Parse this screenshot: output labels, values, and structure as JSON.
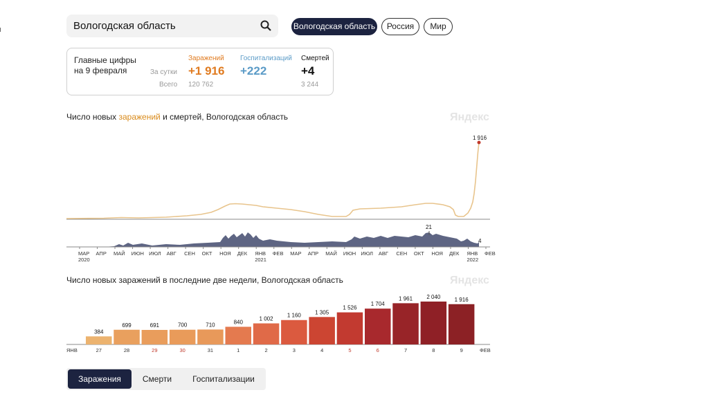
{
  "search": {
    "value": "Вологодская область"
  },
  "regions": [
    "Вологодская область",
    "Россия",
    "Мир"
  ],
  "stats": {
    "heading_line1": "Главные цифры",
    "heading_line2": "на 9 февраля",
    "per_day_label": "За сутки",
    "total_label": "Всего",
    "infections": {
      "label": "Заражений",
      "day": "+1 916",
      "total": "120 762",
      "color": "#e07b20"
    },
    "hospital": {
      "label": "Госпитализаций",
      "day": "+222",
      "total": "",
      "color": "#5b9bc7"
    },
    "deaths": {
      "label": "Смертей",
      "day": "+4",
      "total": "3 244",
      "color": "#111111"
    }
  },
  "chart1": {
    "title_a": "Число новых ",
    "title_hl": "заражений",
    "title_b": " и смертей, Вологодская область",
    "watermark": "Яндекс",
    "peak_label": "1 916",
    "deaths_peak_label": "21",
    "deaths_last_label": "4",
    "months": [
      "МАР",
      "АПР",
      "МАЙ",
      "ИЮН",
      "ИЮЛ",
      "АВГ",
      "СЕН",
      "ОКТ",
      "НОЯ",
      "ДЕК",
      "ЯНВ",
      "ФЕВ",
      "МАР",
      "АПР",
      "МАЙ",
      "ИЮН",
      "ИЮЛ",
      "АВГ",
      "СЕН",
      "ОКТ",
      "НОЯ",
      "ДЕК",
      "ЯНВ",
      "ФЕВ"
    ],
    "years": [
      "2020",
      "2021",
      "2022"
    ]
  },
  "chart_data": {
    "type": "bar",
    "title": "Число новых заражений в последние две недели, Вологодская область",
    "categories": [
      "27",
      "28",
      "29",
      "30",
      "31",
      "1",
      "2",
      "3",
      "4",
      "5",
      "6",
      "7",
      "8",
      "9"
    ],
    "values": [
      384,
      699,
      691,
      700,
      710,
      840,
      1002,
      1160,
      1305,
      1526,
      1704,
      1961,
      2040,
      1916
    ],
    "labels": [
      "384",
      "699",
      "691",
      "700",
      "710",
      "840",
      "1 002",
      "1 160",
      "1 305",
      "1 526",
      "1 704",
      "1 961",
      "2 040",
      "1 916"
    ],
    "weekend": [
      false,
      false,
      true,
      true,
      false,
      false,
      false,
      false,
      false,
      true,
      true,
      false,
      false,
      false
    ],
    "colors": [
      "#ecb36f",
      "#e9a05e",
      "#e99d5c",
      "#e99b5a",
      "#e8995a",
      "#e47a4f",
      "#e06a48",
      "#db5a3f",
      "#cc4532",
      "#c23a30",
      "#a8292d",
      "#982428",
      "#8f2026",
      "#8c2125"
    ],
    "month_start": "ЯНВ",
    "month_end": "ФЕВ",
    "watermark": "Яндекс",
    "ylim": [
      0,
      2200
    ]
  },
  "tabs": [
    "Заражения",
    "Смерти",
    "Госпитализации"
  ]
}
